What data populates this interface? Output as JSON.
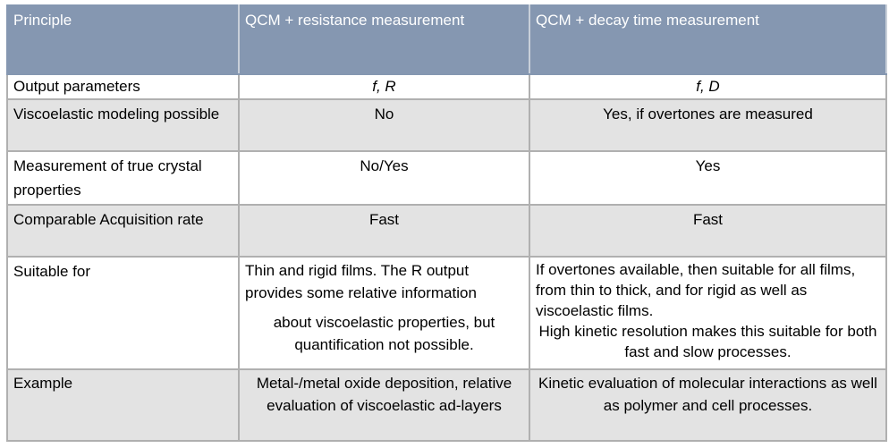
{
  "table": {
    "header": [
      "Principle",
      "QCM + resistance measurement",
      "QCM + decay time measurement"
    ],
    "rows": [
      [
        "Output parameters",
        "f, R",
        "f, D"
      ],
      [
        "Viscoelastic modeling possible",
        "No",
        "Yes, if overtones are measured"
      ],
      [
        "Measurement of true crystal properties",
        "No/Yes",
        "Yes"
      ],
      [
        "Comparable Acquisition rate",
        "Fast",
        "Fast"
      ],
      [
        "Suitable for",
        [
          "Thin and rigid films. The R output provides some relative information",
          "about viscoelastic properties, but quantification not possible."
        ],
        [
          "If overtones available, then suitable for all films, from thin to thick, and for rigid as well as viscoelastic films.",
          "High kinetic resolution makes this suitable for both fast and slow processes."
        ]
      ],
      [
        "Example",
        "Metal-/metal oxide deposition, relative evaluation of viscoelastic ad-layers",
        "Kinetic evaluation of molecular interactions as well as polymer and cell processes."
      ]
    ]
  }
}
